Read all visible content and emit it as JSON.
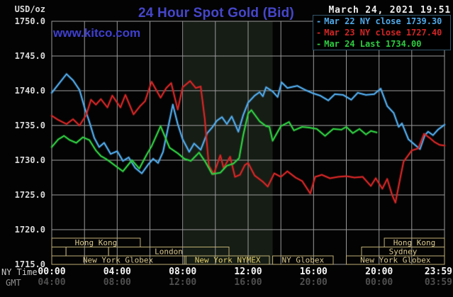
{
  "header": {
    "title": "24 Hour Spot Gold (Bid)",
    "timestamp": "March 24, 2021 19:51",
    "site": "www.kitco.com"
  },
  "colors": {
    "background": "#030303",
    "grid": "#999999",
    "plot_border": "#999999",
    "nymex_band": "#161d15",
    "title_blue": "#4646cb",
    "session_border": "#bfae74",
    "session_text": "#d9c88d",
    "session_text_highlight": "#e8d26a",
    "series_blue": "#4fa8e8",
    "series_red": "#d22525",
    "series_green": "#2ecc40"
  },
  "legend": {
    "marker": "-",
    "items": [
      {
        "label": "Mar 22 NY close 1739.30",
        "color": "#4fa8e8"
      },
      {
        "label": "Mar 23 NY close 1727.40",
        "color": "#d22525"
      },
      {
        "label": "Mar 24 Last 1734.00",
        "color": "#2ecc40"
      }
    ]
  },
  "chart_data": {
    "type": "line",
    "title": "24 Hour Spot Gold (Bid)",
    "ylabel": "USD/oz",
    "ylim": [
      1715.0,
      1750.0
    ],
    "xlim_hours": [
      0,
      24
    ],
    "grid": true,
    "y_axis": {
      "unit_label": "USD/oz",
      "ticks": [
        {
          "value": 1750,
          "label": "1750.0"
        },
        {
          "value": 1745,
          "label": "1745.0"
        },
        {
          "value": 1740,
          "label": "1740.0"
        },
        {
          "value": 1735,
          "label": "1735.0"
        },
        {
          "value": 1730,
          "label": "1730.0"
        },
        {
          "value": 1725,
          "label": "1725.0"
        },
        {
          "value": 1720,
          "label": "1720.0"
        },
        {
          "value": 1715,
          "label": "1715.0"
        }
      ],
      "gridline_values": [
        1745,
        1740,
        1735,
        1730,
        1725,
        1720
      ]
    },
    "x_axis": {
      "primary_label": "NY Time",
      "secondary_label": "GMT",
      "gridline_hours": [
        2,
        4,
        6,
        8,
        10,
        12,
        14,
        16,
        18,
        20,
        22
      ],
      "primary_ticks": [
        {
          "t": 0,
          "label": "00:00",
          "align": "center"
        },
        {
          "t": 4,
          "label": "04:00",
          "align": "center"
        },
        {
          "t": 8,
          "label": "08:00",
          "align": "center"
        },
        {
          "t": 12,
          "label": "12:00",
          "align": "center"
        },
        {
          "t": 16,
          "label": "16:00",
          "align": "center"
        },
        {
          "t": 20,
          "label": "20:00",
          "align": "center"
        },
        {
          "t": 24,
          "label": "23:59",
          "align": "right"
        }
      ],
      "secondary_ticks": [
        {
          "t": 0,
          "label": "04:00",
          "align": "center"
        },
        {
          "t": 4,
          "label": "08:00",
          "align": "center"
        },
        {
          "t": 8,
          "label": "12:00",
          "align": "center"
        },
        {
          "t": 12,
          "label": "16:00",
          "align": "center"
        },
        {
          "t": 16,
          "label": "20:00",
          "align": "center"
        },
        {
          "t": 20,
          "label": "00:00",
          "align": "center"
        },
        {
          "t": 24,
          "label": "03:59",
          "align": "right"
        }
      ]
    },
    "nymex_band": {
      "start": 8.05,
      "end": 13.5
    },
    "sessions": [
      {
        "row": 0,
        "start": 0,
        "end": 5.41,
        "label": "Hong Kong",
        "highlight": false
      },
      {
        "row": 0,
        "start": 20.32,
        "end": 24,
        "label": "Hong Kong",
        "highlight": false
      },
      {
        "row": 1,
        "start": 0,
        "end": 0.87,
        "label": "",
        "highlight": false
      },
      {
        "row": 1,
        "start": 0.87,
        "end": 3.47,
        "label": "",
        "highlight": false
      },
      {
        "row": 1,
        "start": 3.47,
        "end": 10.83,
        "label": "London",
        "highlight": false
      },
      {
        "row": 1,
        "start": 18.93,
        "end": 24,
        "label": "Sydney",
        "highlight": false
      },
      {
        "row": 2,
        "start": 0,
        "end": 8.1,
        "label": "New York Globex",
        "highlight": false
      },
      {
        "row": 2,
        "start": 8.2,
        "end": 13.3,
        "label": "New York NYMEX",
        "highlight": true
      },
      {
        "row": 2,
        "start": 13.5,
        "end": 17.2,
        "label": "NY Globex",
        "highlight": false
      },
      {
        "row": 2,
        "start": 18.0,
        "end": 24,
        "label": "New York Globex",
        "highlight": false
      }
    ],
    "series": [
      {
        "name": "Mar 22",
        "legend": "Mar 22 NY close 1739.30",
        "close": 1739.3,
        "color": "#4fa8e8",
        "points": [
          [
            0,
            1739.7
          ],
          [
            0.4,
            1740.9
          ],
          [
            0.9,
            1742.4
          ],
          [
            1.3,
            1741.5
          ],
          [
            1.7,
            1740.1
          ],
          [
            2.0,
            1737.6
          ],
          [
            2.3,
            1735.5
          ],
          [
            2.6,
            1733.2
          ],
          [
            2.9,
            1731.9
          ],
          [
            3.2,
            1732.5
          ],
          [
            3.6,
            1730.9
          ],
          [
            4.0,
            1731.3
          ],
          [
            4.35,
            1729.9
          ],
          [
            4.7,
            1730.4
          ],
          [
            5.1,
            1728.9
          ],
          [
            5.5,
            1728.1
          ],
          [
            5.9,
            1729.4
          ],
          [
            6.2,
            1730.2
          ],
          [
            6.5,
            1729.6
          ],
          [
            6.8,
            1731.2
          ],
          [
            7.1,
            1734.6
          ],
          [
            7.4,
            1738.0
          ],
          [
            7.7,
            1735.2
          ],
          [
            8.0,
            1733.0
          ],
          [
            8.4,
            1731.2
          ],
          [
            8.7,
            1732.4
          ],
          [
            9.1,
            1731.5
          ],
          [
            9.5,
            1733.9
          ],
          [
            9.8,
            1734.7
          ],
          [
            10.1,
            1735.7
          ],
          [
            10.4,
            1736.2
          ],
          [
            10.7,
            1735.2
          ],
          [
            11.0,
            1736.3
          ],
          [
            11.4,
            1734.1
          ],
          [
            11.7,
            1736.5
          ],
          [
            12.0,
            1738.3
          ],
          [
            12.4,
            1739.3
          ],
          [
            12.7,
            1739.8
          ],
          [
            12.9,
            1739.2
          ],
          [
            13.1,
            1740.5
          ],
          [
            13.5,
            1739.9
          ],
          [
            13.8,
            1739.1
          ],
          [
            14.05,
            1741.2
          ],
          [
            14.4,
            1740.4
          ],
          [
            15.0,
            1740.7
          ],
          [
            15.5,
            1740.1
          ],
          [
            16.0,
            1739.6
          ],
          [
            16.4,
            1739.3
          ],
          [
            16.9,
            1738.6
          ],
          [
            17.3,
            1739.5
          ],
          [
            17.8,
            1739.4
          ],
          [
            18.3,
            1738.7
          ],
          [
            18.7,
            1739.7
          ],
          [
            19.2,
            1739.4
          ],
          [
            19.7,
            1739.5
          ],
          [
            20.1,
            1740.3
          ],
          [
            20.5,
            1737.8
          ],
          [
            20.9,
            1736.8
          ],
          [
            21.2,
            1734.8
          ],
          [
            21.4,
            1735.3
          ],
          [
            21.8,
            1733.0
          ],
          [
            22.2,
            1732.2
          ],
          [
            22.5,
            1731.6
          ],
          [
            22.8,
            1733.6
          ],
          [
            23.0,
            1734.1
          ],
          [
            23.3,
            1733.6
          ],
          [
            23.6,
            1734.4
          ],
          [
            24.0,
            1735.1
          ]
        ]
      },
      {
        "name": "Mar 23",
        "legend": "Mar 23 NY close 1727.40",
        "close": 1727.4,
        "color": "#d22525",
        "points": [
          [
            0,
            1736.4
          ],
          [
            0.4,
            1735.8
          ],
          [
            0.9,
            1735.2
          ],
          [
            1.3,
            1735.9
          ],
          [
            1.7,
            1735.0
          ],
          [
            2.1,
            1736.5
          ],
          [
            2.4,
            1738.7
          ],
          [
            2.7,
            1738.0
          ],
          [
            3.0,
            1738.8
          ],
          [
            3.4,
            1737.6
          ],
          [
            3.7,
            1739.3
          ],
          [
            4.2,
            1737.6
          ],
          [
            4.5,
            1739.4
          ],
          [
            5.0,
            1736.6
          ],
          [
            5.4,
            1737.8
          ],
          [
            5.7,
            1738.5
          ],
          [
            6.1,
            1741.3
          ],
          [
            6.65,
            1739.0
          ],
          [
            7.0,
            1740.4
          ],
          [
            7.3,
            1741.1
          ],
          [
            7.7,
            1737.3
          ],
          [
            8.0,
            1740.5
          ],
          [
            8.45,
            1741.4
          ],
          [
            8.8,
            1740.4
          ],
          [
            9.1,
            1740.6
          ],
          [
            9.35,
            1736.0
          ],
          [
            9.6,
            1729.2
          ],
          [
            9.9,
            1728.0
          ],
          [
            10.3,
            1730.7
          ],
          [
            10.5,
            1728.9
          ],
          [
            10.9,
            1730.5
          ],
          [
            11.2,
            1727.6
          ],
          [
            11.5,
            1727.9
          ],
          [
            11.8,
            1729.3
          ],
          [
            12.0,
            1729.6
          ],
          [
            12.4,
            1727.8
          ],
          [
            12.9,
            1726.9
          ],
          [
            13.2,
            1726.2
          ],
          [
            13.6,
            1728.1
          ],
          [
            14.0,
            1727.6
          ],
          [
            14.4,
            1728.4
          ],
          [
            14.9,
            1727.5
          ],
          [
            15.3,
            1727.0
          ],
          [
            15.8,
            1725.2
          ],
          [
            16.1,
            1727.6
          ],
          [
            16.5,
            1727.9
          ],
          [
            17.0,
            1727.4
          ],
          [
            17.5,
            1727.6
          ],
          [
            18.0,
            1727.7
          ],
          [
            18.5,
            1727.5
          ],
          [
            19.0,
            1727.6
          ],
          [
            19.5,
            1726.3
          ],
          [
            19.8,
            1727.4
          ],
          [
            20.2,
            1725.9
          ],
          [
            20.5,
            1727.3
          ],
          [
            20.8,
            1725.0
          ],
          [
            21.0,
            1723.9
          ],
          [
            21.3,
            1727.5
          ],
          [
            21.5,
            1729.8
          ],
          [
            22.0,
            1731.4
          ],
          [
            22.4,
            1731.7
          ],
          [
            22.75,
            1733.8
          ],
          [
            23.1,
            1733.2
          ],
          [
            23.4,
            1732.6
          ],
          [
            23.7,
            1732.2
          ],
          [
            24.0,
            1732.1
          ]
        ]
      },
      {
        "name": "Mar 24",
        "legend": "Mar 24 Last 1734.00",
        "last": 1734.0,
        "color": "#2ecc40",
        "points": [
          [
            0,
            1731.9
          ],
          [
            0.4,
            1733.0
          ],
          [
            0.75,
            1733.5
          ],
          [
            1.1,
            1732.9
          ],
          [
            1.5,
            1732.5
          ],
          [
            1.9,
            1733.3
          ],
          [
            2.3,
            1732.9
          ],
          [
            2.7,
            1731.4
          ],
          [
            3.0,
            1730.6
          ],
          [
            3.3,
            1730.2
          ],
          [
            3.6,
            1729.7
          ],
          [
            4.0,
            1729.0
          ],
          [
            4.35,
            1728.4
          ],
          [
            4.9,
            1730.0
          ],
          [
            5.35,
            1728.8
          ],
          [
            5.8,
            1730.8
          ],
          [
            6.1,
            1732.0
          ],
          [
            6.65,
            1734.9
          ],
          [
            7.2,
            1731.8
          ],
          [
            7.7,
            1731.0
          ],
          [
            8.1,
            1730.2
          ],
          [
            8.5,
            1729.9
          ],
          [
            9.0,
            1731.1
          ],
          [
            9.4,
            1729.7
          ],
          [
            9.8,
            1728.0
          ],
          [
            10.3,
            1728.2
          ],
          [
            10.7,
            1729.2
          ],
          [
            11.1,
            1729.5
          ],
          [
            11.45,
            1730.3
          ],
          [
            11.7,
            1733.6
          ],
          [
            12.0,
            1736.7
          ],
          [
            12.2,
            1737.2
          ],
          [
            12.7,
            1735.6
          ],
          [
            13.1,
            1734.9
          ],
          [
            13.3,
            1734.8
          ],
          [
            13.5,
            1732.8
          ],
          [
            14.0,
            1734.9
          ],
          [
            14.5,
            1735.5
          ],
          [
            14.8,
            1734.3
          ],
          [
            15.3,
            1734.8
          ],
          [
            15.7,
            1734.7
          ],
          [
            16.2,
            1734.5
          ],
          [
            16.7,
            1733.5
          ],
          [
            17.2,
            1734.5
          ],
          [
            17.7,
            1734.4
          ],
          [
            18.0,
            1734.8
          ],
          [
            18.4,
            1733.9
          ],
          [
            18.8,
            1734.5
          ],
          [
            19.2,
            1733.7
          ],
          [
            19.5,
            1734.2
          ],
          [
            19.85,
            1734.0
          ]
        ]
      }
    ]
  }
}
